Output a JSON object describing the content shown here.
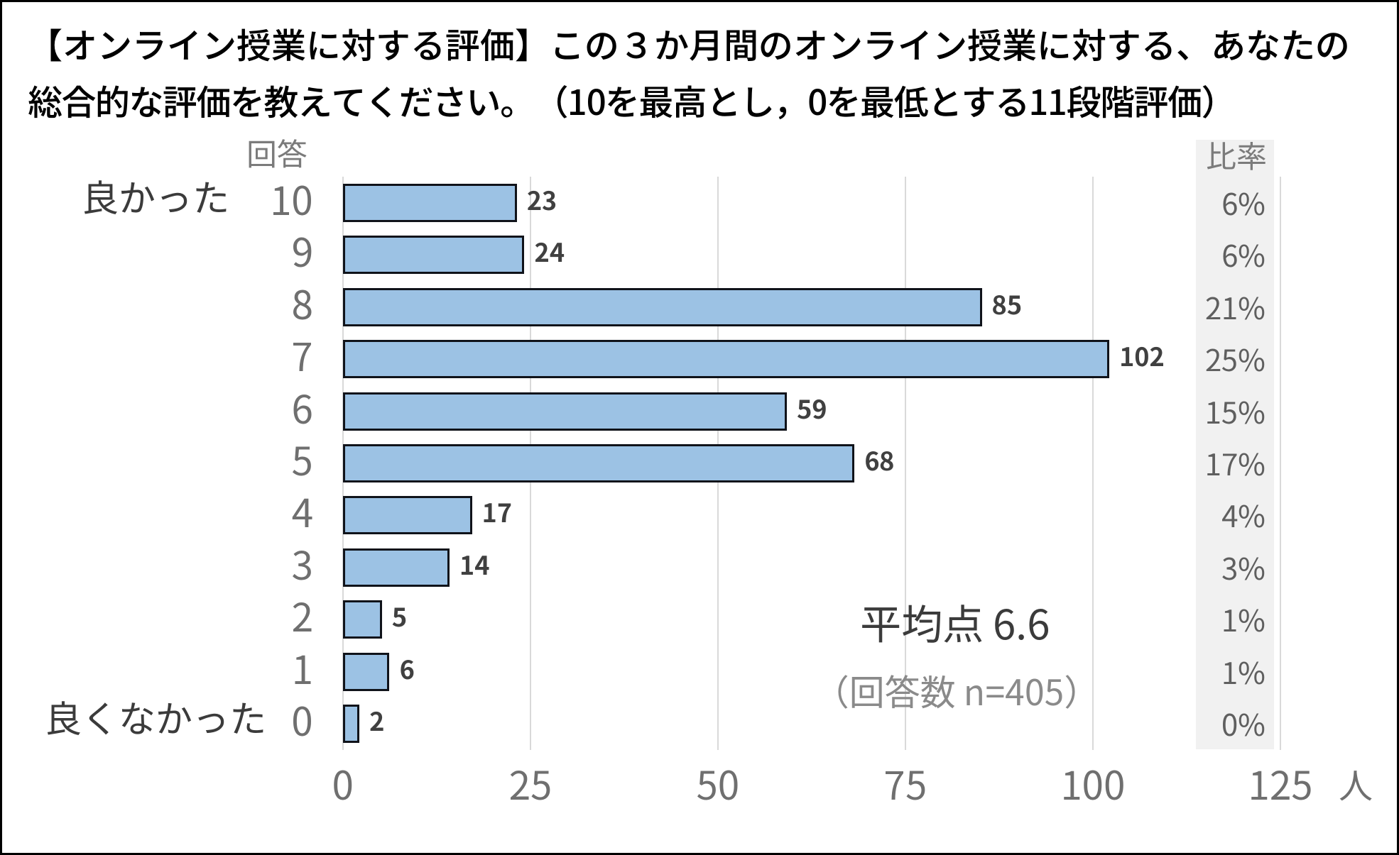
{
  "title": {
    "line1": "【オンライン授業に対する評価】この３か月間のオンライン授業に対する、あなたの",
    "line2": "総合的な評価を教えてください。（10を最高とし，0を最低とする11段階評価）"
  },
  "chart_data": {
    "type": "bar",
    "orientation": "horizontal",
    "title": "【オンライン授業に対する評価】この３か月間のオンライン授業に対する、あなたの総合的な評価を教えてください。（10を最高とし，0を最低とする11段階評価）",
    "category_header": "回答",
    "ratio_header": "比率",
    "categories": [
      "10",
      "9",
      "8",
      "7",
      "6",
      "5",
      "4",
      "3",
      "2",
      "1",
      "0"
    ],
    "values": [
      23,
      24,
      85,
      102,
      59,
      68,
      17,
      14,
      5,
      6,
      2
    ],
    "ratios": [
      "6%",
      "6%",
      "21%",
      "25%",
      "15%",
      "17%",
      "4%",
      "3%",
      "1%",
      "1%",
      "0%"
    ],
    "side_labels": {
      "top": "良かった",
      "bottom": "良くなかった"
    },
    "x_ticks": [
      "0",
      "25",
      "50",
      "75",
      "100",
      "125"
    ],
    "xlim": [
      0,
      125
    ],
    "x_unit": "人",
    "grid": true,
    "legend": false,
    "colors": {
      "bar_fill": "#9cc2e4",
      "bar_border": "#10131a",
      "gridline": "#d9d9d9",
      "ratio_band": "#f1f1f1"
    }
  },
  "annotations": {
    "average": "平均点 6.6",
    "sample_size": "（回答数 n=405）"
  }
}
